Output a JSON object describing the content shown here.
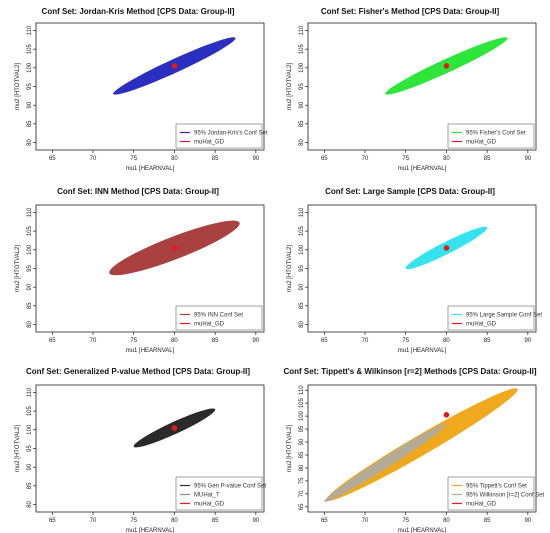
{
  "chart_data": [
    {
      "type": "scatter",
      "title": "Conf Set: Jordan-Kris Method [CPS Data: Group-II]",
      "xlabel": "mu1 [HEARNVAL]",
      "ylabel": "mu2 [HTOTVAL2]",
      "xlim": [
        63,
        91
      ],
      "ylim": [
        78,
        112
      ],
      "xticks": [
        65,
        70,
        75,
        80,
        85,
        90
      ],
      "yticks": [
        80,
        85,
        90,
        95,
        100,
        105,
        110
      ],
      "grid": false,
      "legend_position": "bottom-right",
      "series": [
        {
          "name": "95% Jordan-Kris's Conf Set",
          "kind": "region",
          "color": "#2b2fc0",
          "ellipse": {
            "center": [
              80,
              100.5
            ],
            "major_axis_endpoints": [
              [
                72.5,
                93
              ],
              [
                87.5,
                108
              ]
            ],
            "minor_semi_axis": 1.8
          }
        },
        {
          "name": "muHat_GD",
          "kind": "point",
          "color": "#e31a1c",
          "points": [
            [
              80,
              100.5
            ]
          ]
        }
      ]
    },
    {
      "type": "scatter",
      "title": "Conf Set: Fisher's Method [CPS Data: Group-II]",
      "xlabel": "mu1 [HEARNVAL]",
      "ylabel": "mu2 [HTOTVAL2]",
      "xlim": [
        63,
        91
      ],
      "ylim": [
        78,
        112
      ],
      "xticks": [
        65,
        70,
        75,
        80,
        85,
        90
      ],
      "yticks": [
        80,
        85,
        90,
        95,
        100,
        105,
        110
      ],
      "grid": false,
      "legend_position": "bottom-right",
      "series": [
        {
          "name": "95% Fisher's Conf Set",
          "kind": "region",
          "color": "#2ee63a",
          "ellipse": {
            "center": [
              80,
              100.5
            ],
            "major_axis_endpoints": [
              [
                72.5,
                93
              ],
              [
                87.5,
                108
              ]
            ],
            "minor_semi_axis": 1.8
          }
        },
        {
          "name": "muHat_GD",
          "kind": "point",
          "color": "#e31a1c",
          "points": [
            [
              80,
              100.5
            ]
          ]
        }
      ]
    },
    {
      "type": "scatter",
      "title": "Conf Set: INN Method [CPS Data: Group-II]",
      "xlabel": "mu1 [HEARNVAL]",
      "ylabel": "mu2 [HTOTVAL2]",
      "xlim": [
        63,
        91
      ],
      "ylim": [
        78,
        112
      ],
      "xticks": [
        65,
        70,
        75,
        80,
        85,
        90
      ],
      "yticks": [
        80,
        85,
        90,
        95,
        100,
        105,
        110
      ],
      "grid": false,
      "legend_position": "bottom-right",
      "series": [
        {
          "name": "95% INN Conf Set",
          "kind": "region",
          "color": "#a8413f",
          "ellipse": {
            "center": [
              80,
              100.5
            ],
            "major_axis_endpoints": [
              [
                72,
                94
              ],
              [
                88,
                107.5
              ]
            ],
            "minor_semi_axis": 3.0
          }
        },
        {
          "name": "muHat_GD",
          "kind": "point",
          "color": "#e31a1c",
          "points": [
            [
              80,
              100.5
            ]
          ]
        }
      ]
    },
    {
      "type": "scatter",
      "title": "Conf Set: Large Sample [CPS Data: Group-II]",
      "xlabel": "mu1 [HEARNVAL]",
      "ylabel": "mu2 [HTOTVAL2]",
      "xlim": [
        63,
        91
      ],
      "ylim": [
        78,
        112
      ],
      "xticks": [
        65,
        70,
        75,
        80,
        85,
        90
      ],
      "yticks": [
        80,
        85,
        90,
        95,
        100,
        105,
        110
      ],
      "grid": false,
      "legend_position": "bottom-right",
      "series": [
        {
          "name": "95% Large Sample Conf Set",
          "kind": "region",
          "color": "#35e3ee",
          "ellipse": {
            "center": [
              80,
              100.5
            ],
            "major_axis_endpoints": [
              [
                75,
                95
              ],
              [
                85,
                106
              ]
            ],
            "minor_semi_axis": 1.6
          }
        },
        {
          "name": "muHat_GD",
          "kind": "point",
          "color": "#e31a1c",
          "points": [
            [
              80,
              100.5
            ]
          ]
        }
      ]
    },
    {
      "type": "scatter",
      "title": "Conf Set: Generalized P-value Method [CPS Data: Group-II]",
      "xlabel": "mu1 [HEARNVAL]",
      "ylabel": "mu2 [HTOTVAL2]",
      "xlim": [
        63,
        91
      ],
      "ylim": [
        78,
        112
      ],
      "xticks": [
        65,
        70,
        75,
        80,
        85,
        90
      ],
      "yticks": [
        80,
        85,
        90,
        95,
        100,
        105,
        110
      ],
      "grid": false,
      "legend_position": "bottom-right",
      "series": [
        {
          "name": "95% Gen P-value Conf Set",
          "kind": "region",
          "color": "#2a2a2a",
          "ellipse": {
            "center": [
              80,
              100.5
            ],
            "major_axis_endpoints": [
              [
                75,
                95.5
              ],
              [
                85,
                105.5
              ]
            ],
            "minor_semi_axis": 1.6
          }
        },
        {
          "name": "MUHat_T",
          "kind": "point",
          "color": "#8c8c8c",
          "points": []
        },
        {
          "name": "muHat_GD",
          "kind": "point",
          "color": "#e31a1c",
          "points": [
            [
              80,
              100.5
            ]
          ]
        }
      ]
    },
    {
      "type": "scatter",
      "title": "Conf Set: Tippett's & Wilkinson [r=2] Methods [CPS Data: Group-II]",
      "xlabel": "mu1 [HEARNVAL]",
      "ylabel": "mu2 [HTOTVAL2]",
      "xlim": [
        63,
        91
      ],
      "ylim": [
        63,
        112
      ],
      "xticks": [
        65,
        70,
        75,
        80,
        85,
        90
      ],
      "yticks": [
        65,
        70,
        75,
        80,
        85,
        90,
        95,
        100,
        105,
        110
      ],
      "grid": false,
      "legend_position": "bottom-right",
      "series": [
        {
          "name": "95% Tippett's Conf Set",
          "kind": "region",
          "color": "#f0a81c",
          "ellipse": {
            "center": [
              77,
              89
            ],
            "major_axis_endpoints": [
              [
                65,
                67
              ],
              [
                88.5,
                110
              ]
            ],
            "minor_semi_axis": 3.8
          }
        },
        {
          "name": "95% Wilkinson [r=2] Conf Set",
          "kind": "region",
          "color": "#b3ab98",
          "ellipse": {
            "center": [
              72.5,
              82
            ],
            "major_axis_endpoints": [
              [
                65,
                67
              ],
              [
                80,
                97
              ]
            ],
            "minor_semi_axis": 2.0
          }
        },
        {
          "name": "muHat_GD",
          "kind": "point",
          "color": "#e31a1c",
          "points": [
            [
              80,
              100.5
            ]
          ]
        }
      ]
    }
  ]
}
